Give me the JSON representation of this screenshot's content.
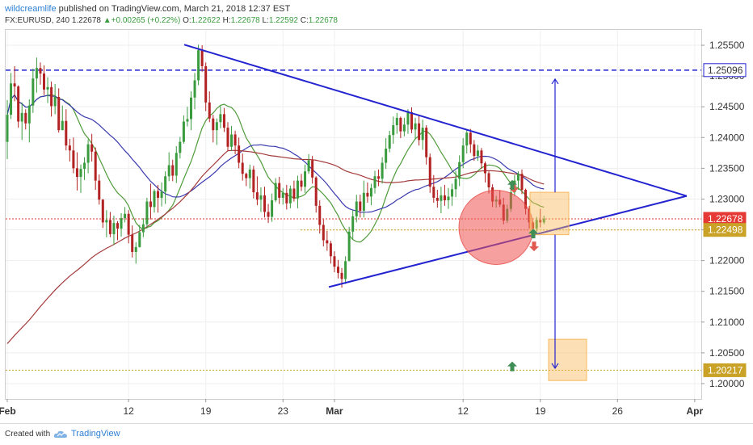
{
  "header": {
    "author": "wildcreamlife",
    "published_text": "published on TradingView.com, March 21, 2018 12:37 EST",
    "symbol": "FX:EURUSD, 240",
    "last": "1.22678",
    "change": "+0.00265 (+0.22%)",
    "o_label": "O:",
    "o_value": "1.22622",
    "h_label": "H:",
    "h_value": "1.22678",
    "l_label": "L:",
    "l_value": "1.22592",
    "c_label": "C:",
    "c_value": "1.22678"
  },
  "footer": {
    "created_with": "Created with",
    "brand": "TradingView"
  },
  "colors": {
    "up": "#3a9b3e",
    "down": "#b22222",
    "trend": "#2323d0",
    "ma_green": "#4f9b3a",
    "ma_blue": "#3a3ab0",
    "ma_red": "#a33a3a",
    "price_line": "#e53935",
    "support": "#c9a227",
    "box": "#f8b85a"
  },
  "chart_data": {
    "type": "candlestick",
    "symbol": "FX:EURUSD",
    "timeframe": "240",
    "ylim": [
      1.1975,
      1.2575
    ],
    "y_ticks": [
      "1.25500",
      "1.25000",
      "1.24500",
      "1.24000",
      "1.23500",
      "1.23000",
      "1.22500",
      "1.22000",
      "1.21500",
      "1.21000",
      "1.20500",
      "1.20000"
    ],
    "x_ticks": [
      "Feb",
      "12",
      "19",
      "23",
      "Mar",
      "12",
      "19",
      "26",
      "Apr"
    ],
    "price_tags": [
      {
        "value": "1.25096",
        "style": "blue-outline"
      },
      {
        "value": "1.22678",
        "style": "red"
      },
      {
        "value": "1.22498",
        "style": "gold"
      },
      {
        "value": "1.20217",
        "style": "gold"
      }
    ],
    "hlines": [
      {
        "y": 1.25096,
        "style": "dashed",
        "color": "#2323d0"
      },
      {
        "y": 1.22678,
        "style": "dotted",
        "color": "#e53935"
      },
      {
        "y": 1.22498,
        "style": "dotted",
        "color": "#c9a227"
      },
      {
        "y": 1.20217,
        "style": "dotted",
        "color": "#c9a227"
      }
    ],
    "triangle": {
      "upper": [
        [
          "Feb 16",
          1.2551
        ],
        [
          "Apr 3",
          1.2305
        ]
      ],
      "lower": [
        [
          "Feb 28",
          1.2157
        ],
        [
          "Apr 3",
          1.2305
        ]
      ]
    },
    "ohlc": [
      [
        1.2393,
        1.2461,
        1.2365,
        1.2437
      ],
      [
        1.2437,
        1.2505,
        1.243,
        1.2488
      ],
      [
        1.2488,
        1.2516,
        1.2459,
        1.2483
      ],
      [
        1.2483,
        1.2485,
        1.2416,
        1.2426
      ],
      [
        1.2426,
        1.2457,
        1.2396,
        1.244
      ],
      [
        1.244,
        1.2446,
        1.2413,
        1.2423
      ],
      [
        1.2423,
        1.2462,
        1.2392,
        1.2452
      ],
      [
        1.2452,
        1.2512,
        1.244,
        1.2496
      ],
      [
        1.2496,
        1.253,
        1.2473,
        1.2513
      ],
      [
        1.2513,
        1.2522,
        1.2486,
        1.2504
      ],
      [
        1.2504,
        1.2517,
        1.2469,
        1.2478
      ],
      [
        1.2478,
        1.2498,
        1.2456,
        1.2482
      ],
      [
        1.2482,
        1.2491,
        1.2434,
        1.2451
      ],
      [
        1.2451,
        1.2487,
        1.2438,
        1.2466
      ],
      [
        1.2466,
        1.248,
        1.2408,
        1.2412
      ],
      [
        1.2412,
        1.2452,
        1.2412,
        1.2427
      ],
      [
        1.2427,
        1.2446,
        1.2379,
        1.2387
      ],
      [
        1.2387,
        1.2398,
        1.2361,
        1.2379
      ],
      [
        1.2379,
        1.24,
        1.2342,
        1.235
      ],
      [
        1.235,
        1.2376,
        1.2314,
        1.2336
      ],
      [
        1.2336,
        1.2356,
        1.231,
        1.2349
      ],
      [
        1.2349,
        1.2368,
        1.2331,
        1.2359
      ],
      [
        1.2359,
        1.2397,
        1.2342,
        1.2389
      ],
      [
        1.2389,
        1.2406,
        1.2361,
        1.2377
      ],
      [
        1.2377,
        1.2384,
        1.2315,
        1.233
      ],
      [
        1.233,
        1.234,
        1.2291,
        1.2299
      ],
      [
        1.2299,
        1.23,
        1.2253,
        1.2262
      ],
      [
        1.2262,
        1.2282,
        1.2238,
        1.2266
      ],
      [
        1.2266,
        1.2279,
        1.2238,
        1.2243
      ],
      [
        1.2243,
        1.2273,
        1.2225,
        1.2261
      ],
      [
        1.2261,
        1.2264,
        1.2233,
        1.2252
      ],
      [
        1.2252,
        1.2277,
        1.2239,
        1.2269
      ],
      [
        1.2269,
        1.2287,
        1.2262,
        1.2276
      ],
      [
        1.2276,
        1.2282,
        1.2228,
        1.2242
      ],
      [
        1.2242,
        1.2257,
        1.2205,
        1.2214
      ],
      [
        1.2214,
        1.223,
        1.2195,
        1.2222
      ],
      [
        1.2222,
        1.2258,
        1.2221,
        1.2246
      ],
      [
        1.2246,
        1.2269,
        1.2238,
        1.2259
      ],
      [
        1.2259,
        1.2302,
        1.2252,
        1.2296
      ],
      [
        1.2296,
        1.2325,
        1.2267,
        1.2287
      ],
      [
        1.2287,
        1.2316,
        1.2278,
        1.2313
      ],
      [
        1.2313,
        1.2323,
        1.2278,
        1.2302
      ],
      [
        1.2302,
        1.2327,
        1.2288,
        1.2312
      ],
      [
        1.2312,
        1.2345,
        1.2292,
        1.2337
      ],
      [
        1.2337,
        1.2376,
        1.2329,
        1.2355
      ],
      [
        1.2355,
        1.2364,
        1.2329,
        1.2338
      ],
      [
        1.2338,
        1.2386,
        1.2326,
        1.2375
      ],
      [
        1.2375,
        1.2401,
        1.2366,
        1.2393
      ],
      [
        1.2393,
        1.2436,
        1.239,
        1.2426
      ],
      [
        1.2426,
        1.245,
        1.2418,
        1.243
      ],
      [
        1.243,
        1.2475,
        1.2412,
        1.2465
      ],
      [
        1.2465,
        1.2505,
        1.2446,
        1.2493
      ],
      [
        1.2493,
        1.2551,
        1.2485,
        1.2542
      ],
      [
        1.2542,
        1.255,
        1.2507,
        1.2516
      ],
      [
        1.2516,
        1.2522,
        1.2443,
        1.2457
      ],
      [
        1.2457,
        1.2475,
        1.2425,
        1.2431
      ],
      [
        1.2431,
        1.2437,
        1.2392,
        1.2412
      ],
      [
        1.2412,
        1.2431,
        1.2388,
        1.2425
      ],
      [
        1.2425,
        1.2451,
        1.2415,
        1.2438
      ],
      [
        1.2438,
        1.2448,
        1.2409,
        1.2416
      ],
      [
        1.2416,
        1.2425,
        1.2378,
        1.2385
      ],
      [
        1.2385,
        1.2419,
        1.2378,
        1.2405
      ],
      [
        1.2405,
        1.2411,
        1.2373,
        1.2387
      ],
      [
        1.2387,
        1.24,
        1.235,
        1.2359
      ],
      [
        1.2359,
        1.2374,
        1.233,
        1.2341
      ],
      [
        1.2341,
        1.2343,
        1.2321,
        1.2334
      ],
      [
        1.2334,
        1.2356,
        1.2317,
        1.2348
      ],
      [
        1.2348,
        1.2354,
        1.2301,
        1.2311
      ],
      [
        1.2311,
        1.2337,
        1.229,
        1.2299
      ],
      [
        1.2299,
        1.2319,
        1.2279,
        1.2306
      ],
      [
        1.2306,
        1.232,
        1.227,
        1.2279
      ],
      [
        1.2279,
        1.2292,
        1.2261,
        1.2271
      ],
      [
        1.2271,
        1.2309,
        1.2263,
        1.2298
      ],
      [
        1.2298,
        1.2334,
        1.2295,
        1.2326
      ],
      [
        1.2326,
        1.2336,
        1.2292,
        1.2302
      ],
      [
        1.2302,
        1.2318,
        1.2291,
        1.231
      ],
      [
        1.231,
        1.2323,
        1.2283,
        1.2293
      ],
      [
        1.2293,
        1.2322,
        1.2285,
        1.2317
      ],
      [
        1.2317,
        1.233,
        1.2296,
        1.2301
      ],
      [
        1.2301,
        1.2338,
        1.2285,
        1.233
      ],
      [
        1.233,
        1.2341,
        1.2313,
        1.232
      ],
      [
        1.232,
        1.2356,
        1.231,
        1.2345
      ],
      [
        1.2345,
        1.2373,
        1.2341,
        1.2363
      ],
      [
        1.2363,
        1.237,
        1.2325,
        1.2335
      ],
      [
        1.2335,
        1.2337,
        1.2278,
        1.2289
      ],
      [
        1.2289,
        1.2298,
        1.2244,
        1.2258
      ],
      [
        1.2258,
        1.2267,
        1.2223,
        1.2233
      ],
      [
        1.2233,
        1.2248,
        1.2216,
        1.2228
      ],
      [
        1.2228,
        1.2232,
        1.2195,
        1.2207
      ],
      [
        1.2207,
        1.2215,
        1.2181,
        1.219
      ],
      [
        1.219,
        1.2201,
        1.2171,
        1.218
      ],
      [
        1.218,
        1.2188,
        1.2156,
        1.217
      ],
      [
        1.217,
        1.2207,
        1.2162,
        1.2199
      ],
      [
        1.2199,
        1.2255,
        1.2199,
        1.2247
      ],
      [
        1.2247,
        1.2282,
        1.2235,
        1.2272
      ],
      [
        1.2272,
        1.2307,
        1.2262,
        1.2296
      ],
      [
        1.2296,
        1.2307,
        1.227,
        1.2281
      ],
      [
        1.2281,
        1.233,
        1.227,
        1.231
      ],
      [
        1.231,
        1.2327,
        1.2294,
        1.2304
      ],
      [
        1.2304,
        1.2325,
        1.229,
        1.2318
      ],
      [
        1.2318,
        1.2346,
        1.2309,
        1.2337
      ],
      [
        1.2337,
        1.2348,
        1.2321,
        1.2333
      ],
      [
        1.2333,
        1.2368,
        1.2325,
        1.2359
      ],
      [
        1.2359,
        1.2399,
        1.2349,
        1.2382
      ],
      [
        1.2382,
        1.2411,
        1.2376,
        1.2404
      ],
      [
        1.2404,
        1.2434,
        1.239,
        1.242
      ],
      [
        1.242,
        1.244,
        1.2406,
        1.2432
      ],
      [
        1.2432,
        1.2434,
        1.2399,
        1.241
      ],
      [
        1.241,
        1.2432,
        1.2402,
        1.2421
      ],
      [
        1.2421,
        1.2446,
        1.2406,
        1.2441
      ],
      [
        1.2441,
        1.2449,
        1.2407,
        1.2413
      ],
      [
        1.2413,
        1.2432,
        1.2397,
        1.2423
      ],
      [
        1.2423,
        1.2436,
        1.2387,
        1.2396
      ],
      [
        1.2396,
        1.2429,
        1.238,
        1.2416
      ],
      [
        1.2416,
        1.242,
        1.2356,
        1.2368
      ],
      [
        1.2368,
        1.2374,
        1.231,
        1.232
      ],
      [
        1.232,
        1.2339,
        1.2294,
        1.2302
      ],
      [
        1.2302,
        1.2315,
        1.2286,
        1.2297
      ],
      [
        1.2297,
        1.232,
        1.2277,
        1.2306
      ],
      [
        1.2306,
        1.2323,
        1.2289,
        1.2298
      ],
      [
        1.2298,
        1.2318,
        1.2284,
        1.2304
      ],
      [
        1.2304,
        1.2325,
        1.2289,
        1.2316
      ],
      [
        1.2316,
        1.2346,
        1.2303,
        1.2333
      ],
      [
        1.2333,
        1.2371,
        1.2321,
        1.236
      ],
      [
        1.236,
        1.2399,
        1.235,
        1.2387
      ],
      [
        1.2387,
        1.2414,
        1.2374,
        1.2408
      ],
      [
        1.2408,
        1.2414,
        1.2375,
        1.2389
      ],
      [
        1.2389,
        1.2396,
        1.2362,
        1.237
      ],
      [
        1.237,
        1.2388,
        1.2362,
        1.2379
      ],
      [
        1.2379,
        1.2383,
        1.2349,
        1.2358
      ],
      [
        1.2358,
        1.2361,
        1.2327,
        1.2342
      ],
      [
        1.2342,
        1.2345,
        1.2309,
        1.2319
      ],
      [
        1.2319,
        1.2324,
        1.2287,
        1.2296
      ],
      [
        1.2296,
        1.2305,
        1.2286,
        1.2299
      ],
      [
        1.2299,
        1.2314,
        1.2287,
        1.2291
      ],
      [
        1.2291,
        1.2302,
        1.2259,
        1.2265
      ],
      [
        1.2265,
        1.2291,
        1.2261,
        1.2284
      ],
      [
        1.2284,
        1.2319,
        1.2279,
        1.2311
      ],
      [
        1.2311,
        1.2339,
        1.2305,
        1.233
      ],
      [
        1.233,
        1.2345,
        1.2315,
        1.2341
      ],
      [
        1.2341,
        1.2348,
        1.2308,
        1.2315
      ],
      [
        1.2315,
        1.2317,
        1.2275,
        1.2284
      ],
      [
        1.2284,
        1.2289,
        1.2252,
        1.2262
      ],
      [
        1.2262,
        1.2265,
        1.224,
        1.2252
      ],
      [
        1.2252,
        1.2271,
        1.2247,
        1.2266
      ],
      [
        1.2266,
        1.2284,
        1.2254,
        1.2262
      ],
      [
        1.2262,
        1.2273,
        1.2259,
        1.2268
      ]
    ]
  }
}
